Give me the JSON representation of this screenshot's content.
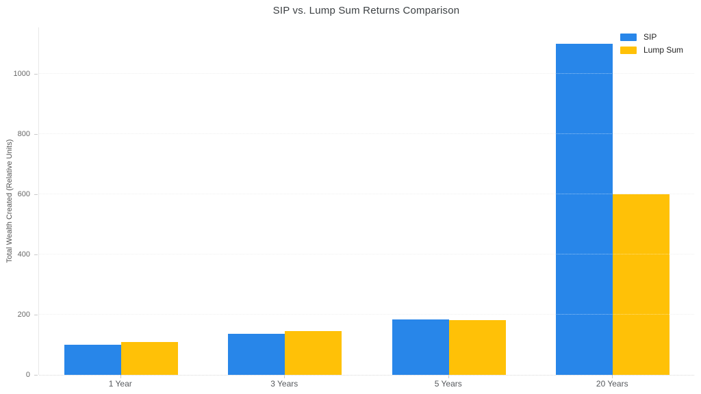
{
  "chart_data": {
    "type": "bar",
    "title": "SIP vs. Lump Sum Returns Comparison",
    "xlabel": "",
    "ylabel": "Total Wealth Created (Relative Units)",
    "categories": [
      "1 Year",
      "3 Years",
      "5 Years",
      "20 Years"
    ],
    "series": [
      {
        "name": "SIP",
        "color": "#2886E9",
        "values": [
          100,
          137,
          185,
          1100
        ]
      },
      {
        "name": "Lump Sum",
        "color": "#FFC107",
        "values": [
          110,
          145,
          181,
          600
        ]
      }
    ],
    "ylim": [
      0,
      1155
    ],
    "yticks": [
      0,
      200,
      400,
      600,
      800,
      1000
    ],
    "grid": true,
    "grid_style": "dotted",
    "legend_position": "top-right",
    "background_color": "#ffffff"
  }
}
